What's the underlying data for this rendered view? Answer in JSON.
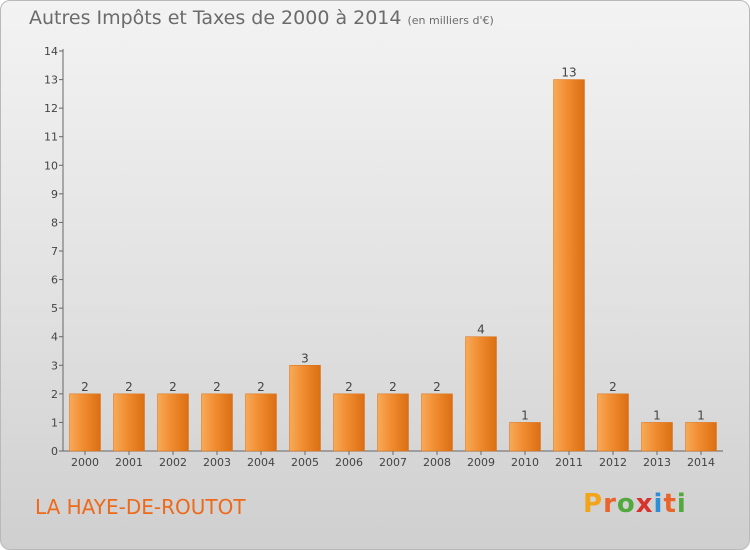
{
  "header": {
    "title": "Autres Impôts et Taxes de 2000 à 2014",
    "unit": "(en milliers d'€)"
  },
  "footer": {
    "commune": "LA HAYE-DE-ROUTOT",
    "logo": [
      "P",
      "r",
      "o",
      "x",
      "i",
      "t",
      "i"
    ]
  },
  "colors": {
    "bar": "#f08c30",
    "bar_light": "#f7aa58",
    "bar_dark": "#db6e12",
    "commune": "#ee6a1a",
    "logo": [
      "#f2a51b",
      "#e8642b",
      "#52a93d",
      "#d9312b",
      "#2c8fd6",
      "#e8642b",
      "#52a93d"
    ]
  },
  "chart_data": {
    "type": "bar",
    "title": "Autres Impôts et Taxes de 2000 à 2014",
    "ylabel": "",
    "xlabel": "",
    "categories": [
      "2000",
      "2001",
      "2002",
      "2003",
      "2004",
      "2005",
      "2006",
      "2007",
      "2008",
      "2009",
      "2010",
      "2011",
      "2012",
      "2013",
      "2014"
    ],
    "values": [
      2,
      2,
      2,
      2,
      2,
      3,
      2,
      2,
      2,
      4,
      1,
      13,
      2,
      1,
      1
    ],
    "ylim": [
      0,
      14
    ],
    "yticks": [
      0,
      1,
      2,
      3,
      4,
      5,
      6,
      7,
      8,
      9,
      10,
      11,
      12,
      13,
      14
    ]
  }
}
